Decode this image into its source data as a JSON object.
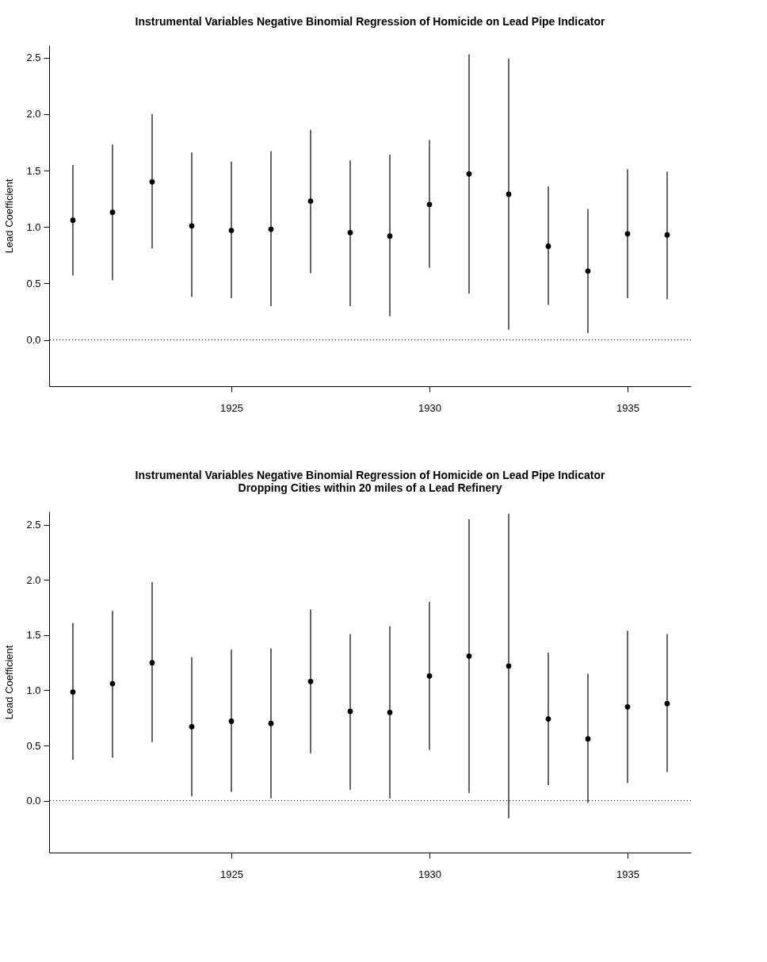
{
  "chart_data": [
    {
      "type": "scatter",
      "title": "Instrumental Variables Negative Binomial Regression of Homicide on Lead Pipe Indicator",
      "ylabel": "Lead Coefficient",
      "x": [
        1921,
        1922,
        1923,
        1924,
        1925,
        1926,
        1927,
        1928,
        1929,
        1930,
        1931,
        1932,
        1933,
        1934,
        1935,
        1936
      ],
      "series": [
        {
          "color": "#000000",
          "values": [
            1.06,
            1.13,
            1.4,
            1.01,
            0.97,
            0.98,
            1.23,
            0.95,
            0.92,
            1.2,
            1.47,
            1.29,
            0.83,
            0.61,
            0.94,
            0.93
          ],
          "errors": [
            [
              0.57,
              1.55
            ],
            [
              0.53,
              1.73
            ],
            [
              0.81,
              2.0
            ],
            [
              0.38,
              1.66
            ],
            [
              0.37,
              1.58
            ],
            [
              0.3,
              1.67
            ],
            [
              0.59,
              1.86
            ],
            [
              0.3,
              1.59
            ],
            [
              0.21,
              1.64
            ],
            [
              0.64,
              1.77
            ],
            [
              0.41,
              2.53
            ],
            [
              0.09,
              2.49
            ],
            [
              0.31,
              1.36
            ],
            [
              0.06,
              1.16
            ],
            [
              0.37,
              1.51
            ],
            [
              0.36,
              1.49
            ]
          ]
        }
      ],
      "xlim": [
        1920.4,
        1936.6
      ],
      "xticks": [
        1925,
        1930,
        1935
      ],
      "ylim": [
        -0.41,
        2.61
      ],
      "yticks": [
        {
          "value": 0,
          "label": "0.0"
        },
        0.5,
        {
          "value": 1,
          "label": "1.0"
        },
        1.5,
        {
          "value": 2,
          "label": "2.0"
        },
        2.5
      ],
      "ref_lines": [
        {
          "axis": "y",
          "value": 0,
          "color": "#000000",
          "line_style": "dotted"
        }
      ],
      "marker": "circle",
      "grid": false
    },
    {
      "type": "scatter",
      "title": "Instrumental Variables Negative Binomial Regression of Homicide on Lead Pipe Indicator\nDropping Cities within 20 miles of a Lead Refinery",
      "ylabel": "Lead Coefficient",
      "x": [
        1921,
        1922,
        1923,
        1924,
        1925,
        1926,
        1927,
        1928,
        1929,
        1930,
        1931,
        1932,
        1933,
        1934,
        1935,
        1936
      ],
      "series": [
        {
          "color": "#000000",
          "values": [
            0.985,
            1.06,
            1.25,
            0.67,
            0.72,
            0.7,
            1.08,
            0.81,
            0.8,
            1.13,
            1.31,
            1.22,
            0.74,
            0.56,
            0.85,
            0.88
          ],
          "errors": [
            [
              0.37,
              1.61
            ],
            [
              0.39,
              1.72
            ],
            [
              0.53,
              1.98
            ],
            [
              0.04,
              1.3
            ],
            [
              0.08,
              1.37
            ],
            [
              0.02,
              1.38
            ],
            [
              0.43,
              1.73
            ],
            [
              0.1,
              1.51
            ],
            [
              0.02,
              1.58
            ],
            [
              0.46,
              1.8
            ],
            [
              0.07,
              2.55
            ],
            [
              -0.16,
              2.6
            ],
            [
              0.14,
              1.34
            ],
            [
              -0.02,
              1.15
            ],
            [
              0.16,
              1.54
            ],
            [
              0.26,
              1.51
            ]
          ]
        }
      ],
      "xlim": [
        1920.4,
        1936.6
      ],
      "xticks": [
        1925,
        1930,
        1935
      ],
      "ylim": [
        -0.47,
        2.62
      ],
      "yticks": [
        {
          "value": 0,
          "label": "0.0"
        },
        0.5,
        {
          "value": 1,
          "label": "1.0"
        },
        1.5,
        {
          "value": 2,
          "label": "2.0"
        },
        2.5
      ],
      "ref_lines": [
        {
          "axis": "y",
          "value": 0,
          "color": "#000000",
          "line_style": "dotted"
        }
      ],
      "marker": "circle",
      "grid": false
    }
  ]
}
